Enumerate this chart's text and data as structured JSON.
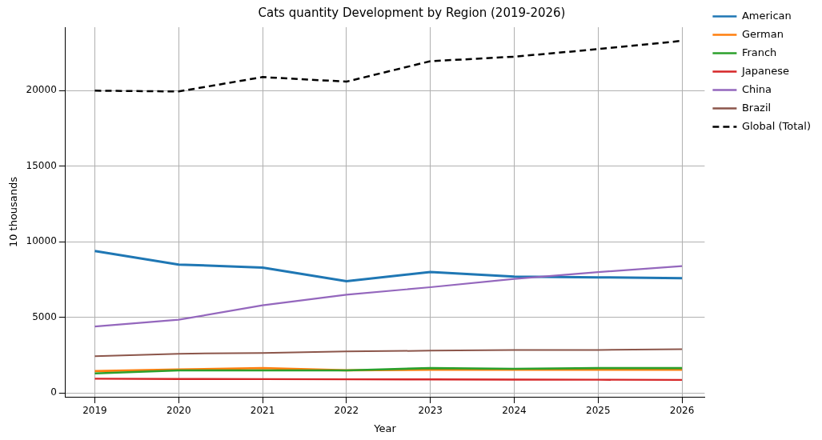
{
  "chart_data": {
    "type": "line",
    "title": "Cats quantity Development by Region (2019-2026)",
    "xlabel": "Year",
    "ylabel": "10 thousands",
    "x": [
      2019,
      2020,
      2021,
      2022,
      2023,
      2024,
      2025,
      2026
    ],
    "series": [
      {
        "name": "American",
        "color": "#1f77b4",
        "values": [
          9400,
          8500,
          8300,
          7400,
          8000,
          7700,
          7650,
          7600
        ]
      },
      {
        "name": "German",
        "color": "#ff7f0e",
        "values": [
          1450,
          1550,
          1650,
          1500,
          1550,
          1550,
          1550,
          1550
        ]
      },
      {
        "name": "Franch",
        "color": "#2ca02c",
        "values": [
          1300,
          1500,
          1500,
          1500,
          1650,
          1600,
          1650,
          1650
        ]
      },
      {
        "name": "Japanese",
        "color": "#d62728",
        "values": [
          950,
          930,
          920,
          910,
          900,
          890,
          880,
          870
        ]
      },
      {
        "name": "China",
        "color": "#9467bd",
        "values": [
          4400,
          4850,
          5800,
          6500,
          7000,
          7550,
          8000,
          8400
        ]
      },
      {
        "name": "Brazil",
        "color": "#8c564b",
        "values": [
          2430,
          2600,
          2650,
          2750,
          2800,
          2850,
          2850,
          2900
        ]
      },
      {
        "name": "Global (Total)",
        "color": "#000000",
        "values": [
          20000,
          19950,
          20900,
          20600,
          21950,
          22250,
          22750,
          23300
        ],
        "line_style": "dashed"
      }
    ],
    "xlim": [
      2018.65,
      2026.27
    ],
    "xticks": [
      2019,
      2020,
      2021,
      2022,
      2023,
      2024,
      2025,
      2026
    ],
    "ylim": [
      -250,
      24200
    ],
    "yticks": [
      0,
      5000,
      10000,
      15000,
      20000
    ],
    "grid": true,
    "legend": "top right",
    "marker": "none"
  }
}
